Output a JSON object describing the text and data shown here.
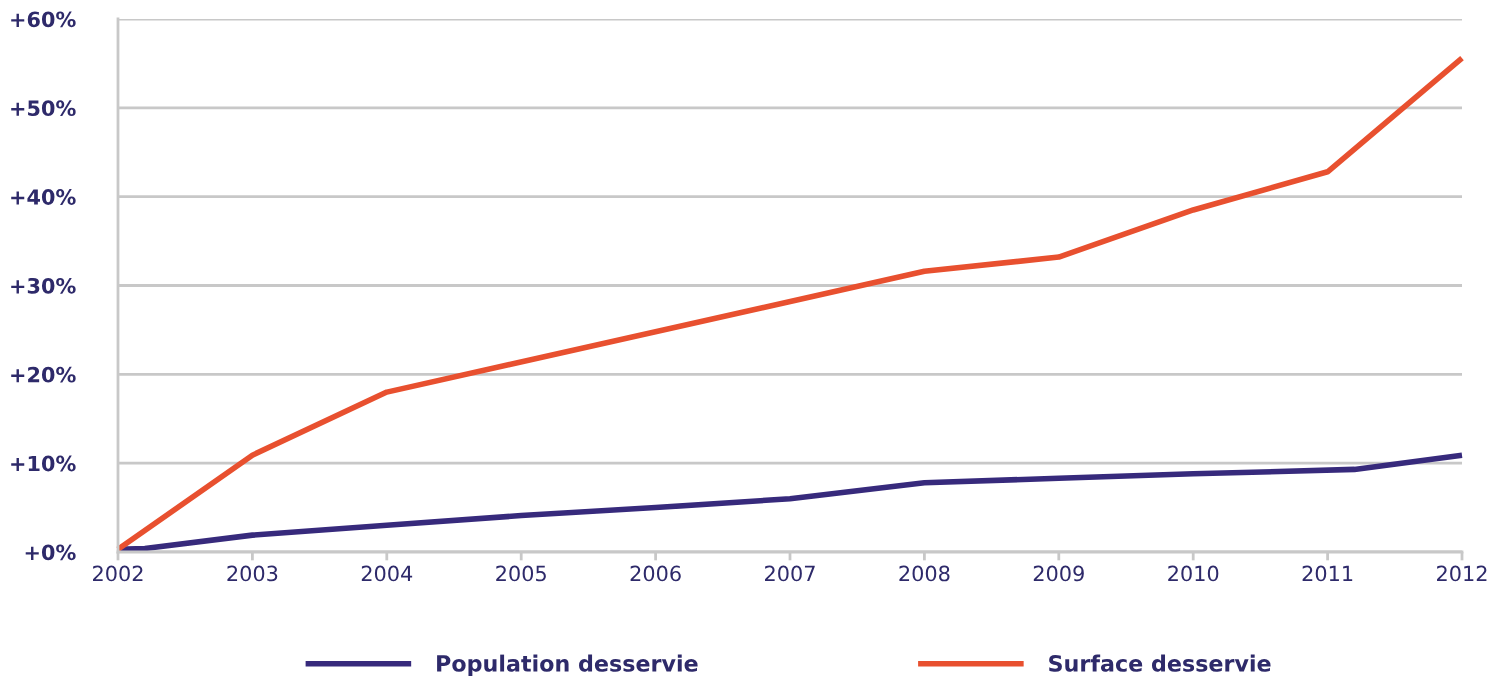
{
  "chart_data": {
    "type": "line",
    "xlim": [
      2002,
      2012
    ],
    "xticks": [
      2002,
      2003,
      2004,
      2005,
      2006,
      2007,
      2008,
      2009,
      2010,
      2011,
      2012
    ],
    "ylim": [
      0,
      60
    ],
    "yticks": [
      {
        "value": 0,
        "label": "+0%"
      },
      {
        "value": 10,
        "label": "+10%"
      },
      {
        "value": 20,
        "label": "+20%"
      },
      {
        "value": 30,
        "label": "+30%"
      },
      {
        "value": 40,
        "label": "+40%"
      },
      {
        "value": 50,
        "label": "+50%"
      },
      {
        "value": 60,
        "label": "+60%"
      }
    ],
    "grid": "y",
    "legend": "bottom",
    "marker": "none",
    "line_style": "solid",
    "series": [
      {
        "name": "Population desservie",
        "color": "#372a7c",
        "x": [
          2002,
          2002.2,
          2003,
          2004,
          2005,
          2006,
          2007,
          2008,
          2009,
          2010,
          2011.2,
          2012
        ],
        "values": [
          0.3,
          0.4,
          1.9,
          3.0,
          4.1,
          5.0,
          6.0,
          7.8,
          8.3,
          8.8,
          9.3,
          10.9
        ]
      },
      {
        "name": "Surface desservie",
        "color": "#e8502f",
        "x": [
          2002,
          2003,
          2004,
          2008,
          2009,
          2010,
          2011,
          2012
        ],
        "values": [
          0.3,
          10.9,
          18.0,
          31.6,
          33.2,
          38.5,
          42.8,
          55.6
        ]
      }
    ]
  }
}
